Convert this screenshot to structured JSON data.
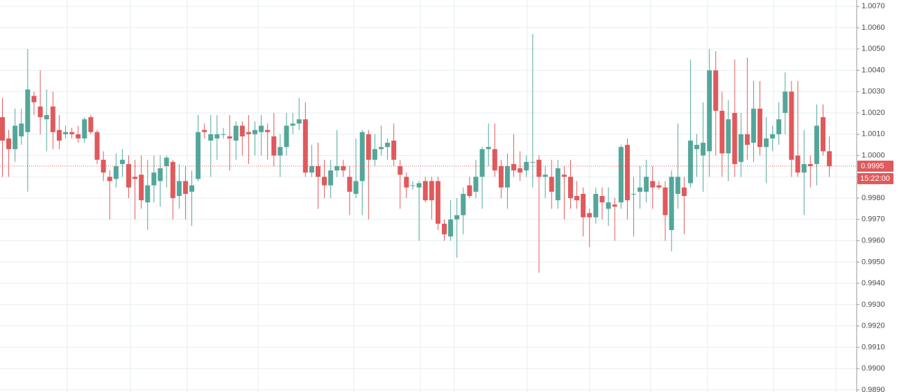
{
  "chart_data": {
    "type": "candlestick",
    "open": [
      1.0018,
      1.0008,
      1.0003,
      1.0009,
      1.0011,
      1.0028,
      1.0023,
      1.0017,
      1.0023,
      1.0012,
      1.001,
      1.0011,
      1.001,
      1.0008,
      1.0018,
      1.0011,
      0.9998,
      0.999,
      0.9989,
      0.9996,
      0.9996,
      0.999,
      0.9991,
      0.9978,
      0.9986,
      0.9988,
      0.9995,
      0.9997,
      0.9981,
      0.9988,
      0.9983,
      0.9989,
      1.0012,
      1.0007,
      1.0008,
      1.001,
      1.0009,
      1.0007,
      1.0014,
      1.0011,
      1.001,
      1.0011,
      1.0012,
      1.0009,
      1.0,
      1.0004,
      1.0014,
      1.0015,
      1.0017,
      0.9992,
      0.9995,
      0.999,
      0.9986,
      0.9993,
      0.9995,
      0.999,
      0.9982,
      0.9988,
      1.001,
      0.9998,
      1.0003,
      1.0004,
      1.0007,
      0.9995,
      0.999,
      0.9986,
      0.9985,
      0.9988,
      0.9988,
      0.9988,
      0.9968,
      0.9962,
      0.997,
      0.9972,
      0.9986,
      0.9983,
      0.999,
      1.0003,
      1.0003,
      0.9995,
      0.9985,
      0.9996,
      0.9994,
      0.9993,
      0.9997,
      0.9998,
      0.999,
      0.999,
      0.9979,
      0.9991,
      0.999,
      0.9981,
      0.9982,
      0.9973,
      0.9971,
      0.9981,
      0.9975,
      0.9977,
      0.9978,
      1.0005,
      0.9982,
      0.9983,
      0.9983,
      0.9988,
      0.9986,
      0.9985,
      0.9965,
      0.9982,
      0.9985,
      0.9987,
      1.0003,
      1.0,
      1.0002,
      1.004,
      1.0021,
      1.0001,
      1.002,
      0.9997,
      1.001,
      1.0006,
      1.0022,
      1.0004,
      1.0008,
      1.001,
      1.002,
      1.003,
      1.0,
      0.9992,
      0.9996,
      0.9996,
      1.0018,
      1.0002
    ],
    "high": [
      1.0027,
      1.0012,
      1.0022,
      1.0022,
      1.005,
      1.003,
      1.004,
      1.0031,
      1.003,
      1.0019,
      1.0014,
      1.0013,
      1.0014,
      1.0018,
      1.0019,
      1.0012,
      1.0002,
      0.9993,
      1.0001,
      1.0003,
      1.0,
      0.9998,
      1.0,
      0.9998,
      1.0,
      1.0,
      1.0,
      0.9998,
      0.9996,
      0.9995,
      0.9993,
      1.0019,
      1.0015,
      1.0019,
      1.0019,
      1.0013,
      1.0019,
      1.0016,
      1.0016,
      1.0019,
      1.0016,
      1.0019,
      1.0015,
      1.002,
      1.001,
      1.002,
      1.002,
      1.0027,
      1.0025,
      1.0005,
      1.0006,
      0.9998,
      0.9998,
      1.0012,
      0.9998,
      0.9995,
      1.0008,
      1.0012,
      1.0012,
      1.001,
      1.0014,
      1.0008,
      1.0015,
      0.9998,
      0.9992,
      0.9988,
      0.9988,
      0.999,
      0.999,
      0.999,
      0.997,
      0.9979,
      0.998,
      0.9985,
      0.999,
      0.9998,
      1.0004,
      1.0015,
      1.0015,
      0.9998,
      1.0001,
      1.001,
      1.0002,
      1.0,
      1.0057,
      1.0,
      0.9995,
      0.9998,
      0.9998,
      0.9995,
      0.9998,
      0.9988,
      0.9985,
      0.9975,
      0.9985,
      0.9985,
      0.9985,
      0.998,
      1.0005,
      1.0008,
      0.999,
      0.9995,
      0.9998,
      0.9995,
      0.9988,
      0.9988,
      0.9993,
      1.0015,
      0.999,
      1.0045,
      1.001,
      1.0025,
      1.005,
      1.0049,
      1.003,
      1.0026,
      1.0045,
      1.002,
      1.0046,
      1.0035,
      1.0035,
      1.0018,
      1.0014,
      1.0025,
      1.0039,
      1.0035,
      1.0035,
      1.0012,
      1.0,
      1.0024,
      1.0024,
      1.0009
    ],
    "low": [
      0.999,
      0.999,
      0.9997,
      1.0005,
      0.9983,
      1.0019,
      1.001,
      1.0002,
      1.0003,
      1.0003,
      1.0008,
      1.0008,
      1.0006,
      1.0006,
      1.001,
      0.9996,
      0.9988,
      0.997,
      0.9985,
      0.999,
      0.998,
      0.997,
      0.9975,
      0.9965,
      0.9978,
      0.9976,
      0.9985,
      0.997,
      0.9975,
      0.997,
      0.9967,
      0.9988,
      1.0008,
      0.999,
      0.9998,
      1.0008,
      0.9993,
      0.9998,
      1.0,
      0.9996,
      1.0,
      1.0,
      0.9998,
      0.9995,
      0.999,
      1.0,
      1.001,
      1.0012,
      0.999,
      0.999,
      0.9975,
      0.998,
      0.998,
      0.999,
      0.999,
      0.9972,
      0.998,
      0.9972,
      0.997,
      0.9995,
      1.0,
      0.9998,
      0.9995,
      0.9975,
      0.998,
      0.9984,
      0.996,
      0.9978,
      0.997,
      0.9965,
      0.996,
      0.996,
      0.9952,
      0.9963,
      0.998,
      0.998,
      0.9975,
      0.9995,
      0.999,
      0.998,
      0.9975,
      0.999,
      0.9988,
      0.999,
      0.9985,
      0.9945,
      0.998,
      0.9975,
      0.9975,
      0.997,
      0.9975,
      0.9975,
      0.9962,
      0.9957,
      0.9968,
      0.997,
      0.9967,
      0.996,
      0.9975,
      0.997,
      0.9962,
      0.9975,
      0.9978,
      0.9975,
      0.9984,
      0.996,
      0.9955,
      0.9975,
      0.9963,
      0.9985,
      0.999,
      0.9983,
      0.999,
      1.0,
      0.999,
      0.9988,
      0.999,
      0.999,
      0.9998,
      0.9997,
      1.0,
      0.9987,
      1.0002,
      1.0005,
      1.001,
      0.999,
      0.999,
      0.9972,
      0.9985,
      0.9986,
      1.0,
      0.999
    ],
    "close": [
      1.0007,
      1.0003,
      1.0014,
      1.0015,
      1.0031,
      1.0025,
      1.0018,
      1.0019,
      1.0011,
      1.0007,
      1.0011,
      1.001,
      1.0008,
      1.0017,
      1.0011,
      0.9998,
      0.9992,
      0.9988,
      0.9995,
      0.9998,
      0.9985,
      0.9989,
      0.9979,
      0.9986,
      0.9992,
      0.9994,
      0.9999,
      0.998,
      0.9988,
      0.9982,
      0.9986,
      1.0011,
      1.0011,
      1.001,
      1.001,
      1.001,
      1.0008,
      1.0014,
      1.0009,
      1.001,
      1.0012,
      1.0014,
      1.0011,
      1.0,
      1.0004,
      1.0014,
      1.0015,
      1.0017,
      0.9992,
      0.9995,
      0.999,
      0.9986,
      0.9993,
      0.9995,
      0.9993,
      0.9983,
      0.9988,
      1.0011,
      0.9998,
      1.0003,
      1.0004,
      1.0006,
      0.9998,
      0.9991,
      0.9985,
      0.9986,
      0.9987,
      0.9979,
      0.9979,
      0.9968,
      0.9963,
      0.997,
      0.9972,
      0.9982,
      0.9981,
      0.999,
      1.0003,
      1.0004,
      0.9993,
      0.9985,
      0.9995,
      0.9993,
      0.9992,
      0.9997,
      0.9997,
      0.999,
      0.9991,
      0.9983,
      0.9994,
      0.999,
      0.998,
      0.9979,
      0.9971,
      0.9971,
      0.9982,
      0.9978,
      0.9978,
      0.9976,
      1.0004,
      0.9979,
      0.9982,
      0.9985,
      0.999,
      0.9985,
      0.9985,
      0.9972,
      0.999,
      0.999,
      0.9981,
      1.0007,
      1.0005,
      1.0006,
      1.004,
      1.0021,
      1.0001,
      1.0017,
      0.9996,
      1.001,
      1.0005,
      1.0022,
      1.0004,
      1.0008,
      1.001,
      1.0017,
      1.003,
      0.9998,
      0.9992,
      0.9996,
      0.9995,
      1.0014,
      1.0002,
      0.9995
    ],
    "up_color": "#53a69a",
    "down_color": "#e0595b",
    "ylim": [
      0.9889,
      1.0073
    ],
    "yticks": [
      {
        "value": 1.007,
        "label": "1.0070"
      },
      {
        "value": 1.006,
        "label": "1.0060"
      },
      {
        "value": 1.005,
        "label": "1.0050"
      },
      {
        "value": 1.004,
        "label": "1.0040"
      },
      {
        "value": 1.003,
        "label": "1.0030"
      },
      {
        "value": 1.002,
        "label": "1.0020"
      },
      {
        "value": 1.001,
        "label": "1.0010"
      },
      {
        "value": 1.0,
        "label": "1.0000"
      },
      {
        "value": 0.999,
        "label": "0.9990"
      },
      {
        "value": 0.998,
        "label": "0.9980"
      },
      {
        "value": 0.997,
        "label": "0.9970"
      },
      {
        "value": 0.996,
        "label": "0.9960"
      },
      {
        "value": 0.995,
        "label": "0.9950"
      },
      {
        "value": 0.994,
        "label": "0.9940"
      },
      {
        "value": 0.993,
        "label": "0.9930"
      },
      {
        "value": 0.992,
        "label": "0.9920"
      },
      {
        "value": 0.991,
        "label": "0.9910"
      },
      {
        "value": 0.99,
        "label": "0.9900"
      },
      {
        "value": 0.989,
        "label": "0.9890"
      }
    ],
    "grid": true,
    "last_price": 0.9995,
    "time_label": "15:22:00"
  }
}
